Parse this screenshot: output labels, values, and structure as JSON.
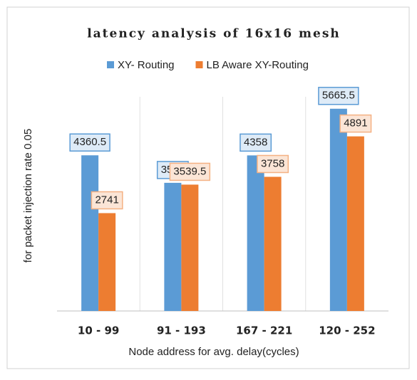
{
  "chart_data": {
    "type": "bar",
    "title": "latency analysis of 16x16 mesh",
    "x_label": "Node address for avg. delay(cycles)",
    "y_label": "for packet injection rate 0.05",
    "categories": [
      "10 - 99",
      "91 - 193",
      "167 - 221",
      "120 - 252"
    ],
    "series": [
      {
        "name": "XY- Routing",
        "color": "#5b9bd5",
        "values": [
          4360.5,
          3590,
          4358,
          5665.5
        ]
      },
      {
        "name": "LB Aware XY-Routing",
        "color": "#ed7d31",
        "values": [
          2741,
          3539.5,
          3758,
          4891
        ]
      }
    ],
    "ylim": [
      0,
      6000
    ],
    "legend": "top"
  }
}
